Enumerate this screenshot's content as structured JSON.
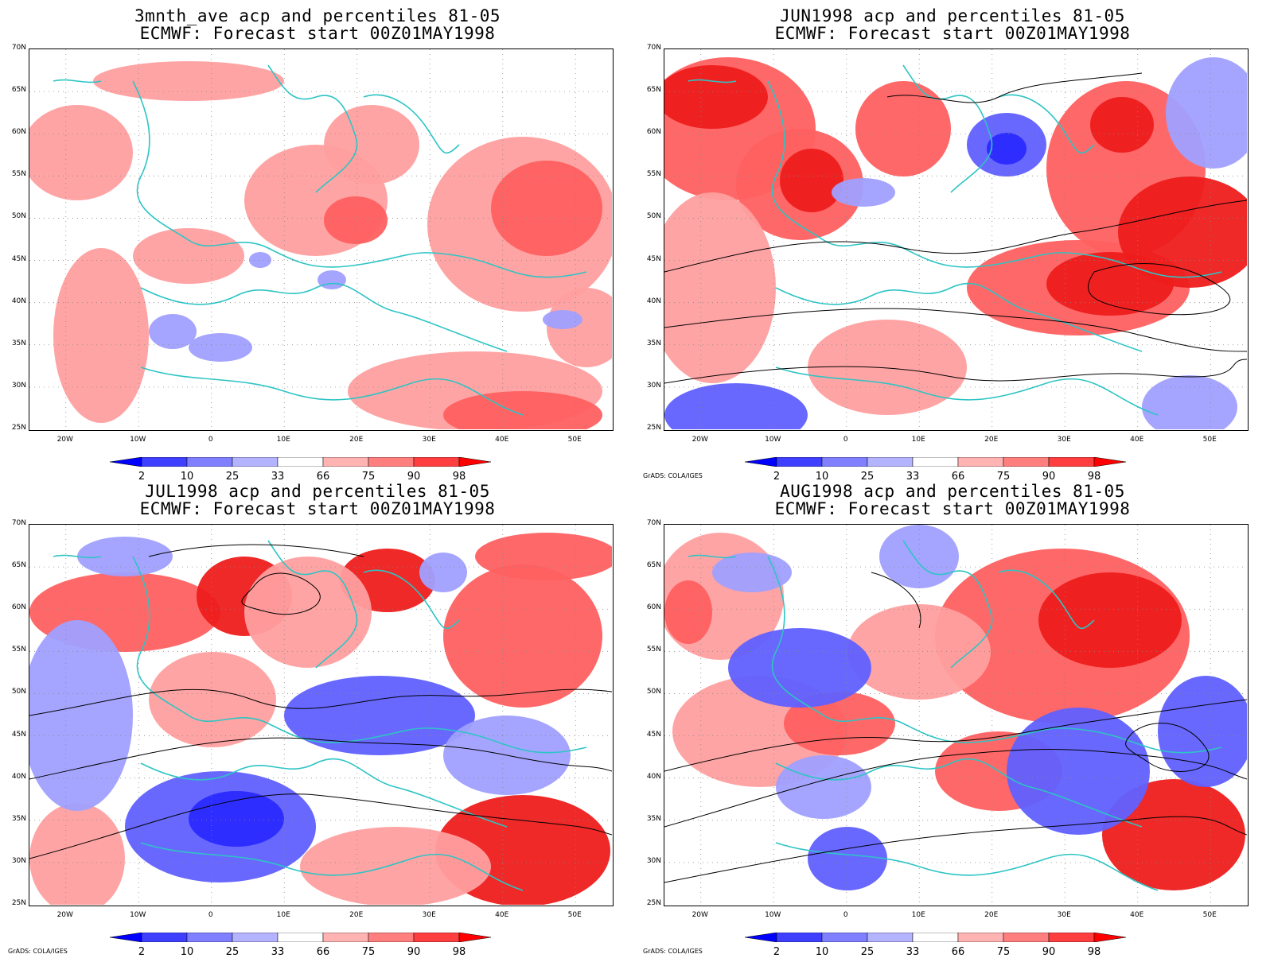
{
  "panels": [
    {
      "title_line1": "3mnth_ave acp and percentiles 81-05",
      "title_line2": "ECMWF: Forecast start 00Z01MAY1998",
      "credit": ""
    },
    {
      "title_line1": "JUN1998 acp and percentiles 81-05",
      "title_line2": "ECMWF: Forecast start 00Z01MAY1998",
      "credit": "GrADS: COLA/IGES"
    },
    {
      "title_line1": "JUL1998 acp and percentiles 81-05",
      "title_line2": "ECMWF: Forecast start 00Z01MAY1998",
      "credit": "GrADS: COLA/IGES"
    },
    {
      "title_line1": "AUG1998 acp and percentiles 81-05",
      "title_line2": "ECMWF: Forecast start 00Z01MAY1998",
      "credit": "GrADS: COLA/IGES"
    }
  ],
  "lat_labels": [
    "70N",
    "65N",
    "60N",
    "55N",
    "50N",
    "45N",
    "40N",
    "35N",
    "30N",
    "25N"
  ],
  "lon_labels": [
    "20W",
    "10W",
    "0",
    "10E",
    "20E",
    "30E",
    "40E",
    "50E"
  ],
  "colorbar": {
    "labels": [
      "2",
      "10",
      "25",
      "33",
      "66",
      "75",
      "90",
      "98"
    ],
    "colors": [
      "#0000ff",
      "#3f3fff",
      "#7f7fff",
      "#b3b3ff",
      "#ffffff",
      "#ffb3b3",
      "#ff7f7f",
      "#ff3f3f",
      "#ff0000"
    ]
  },
  "colors": {
    "coast": "#2ec4c4",
    "contour": "#000000",
    "red_light": "#ff9f9f",
    "red_mid": "#ff6060",
    "red_dark": "#ee1c1c",
    "blue_light": "#a0a0ff",
    "blue_mid": "#6060ff",
    "blue_dark": "#2a2aff"
  }
}
